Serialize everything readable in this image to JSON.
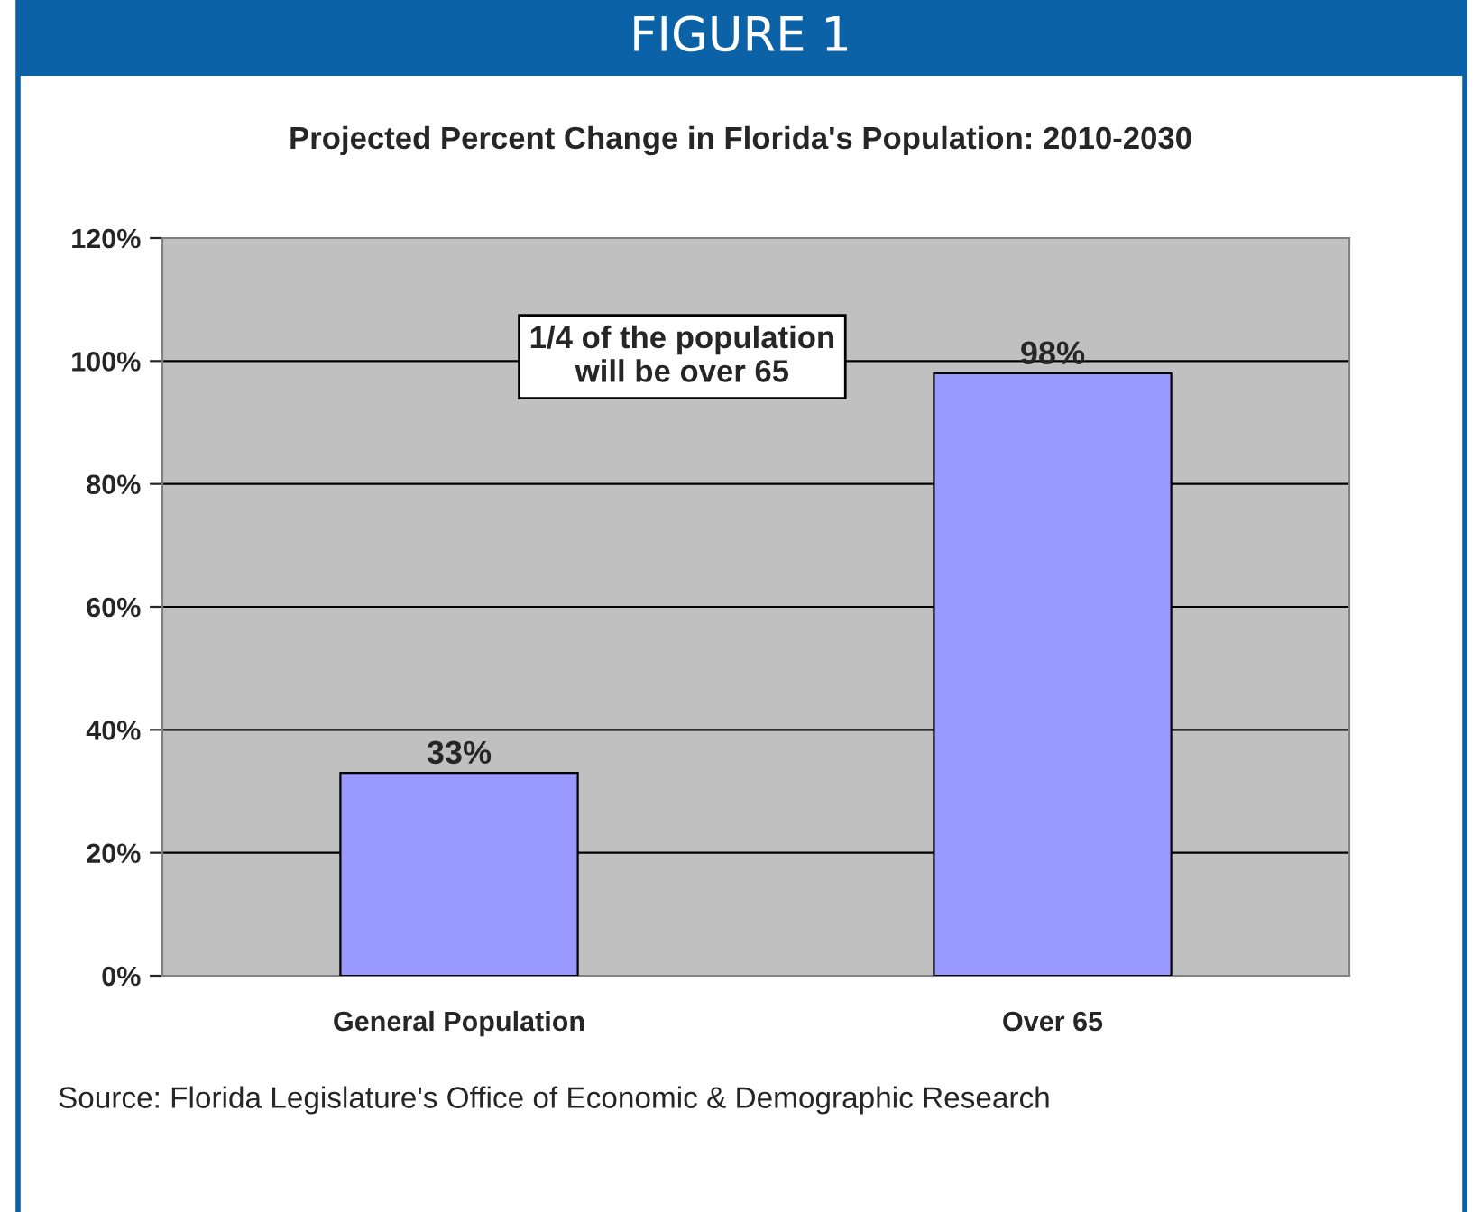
{
  "chart_data": {
    "type": "bar",
    "title": "FIGURE 1",
    "subtitle": "Projected Percent Change in Florida's Population: 2010-2030",
    "categories": [
      "General Population",
      "Over 65"
    ],
    "values": [
      33,
      98
    ],
    "color": "#9999ff",
    "value_labels": [
      "33%",
      "98%"
    ],
    "ylim": [
      0,
      120
    ],
    "yticks": [
      {
        "value": 0,
        "label": "0%"
      },
      {
        "value": 20,
        "label": "20%"
      },
      {
        "value": 40,
        "label": "40%"
      },
      {
        "value": 60,
        "label": "60%"
      },
      {
        "value": 80,
        "label": "80%"
      },
      {
        "value": 100,
        "label": "100%"
      },
      {
        "value": 120,
        "label": "120%"
      }
    ],
    "grid": "y",
    "legend": false,
    "annotations": [
      "1/4 of the population\nwill be over 65",
      "Source: Florida Legislature's Office of Economic & Demographic Research"
    ]
  }
}
